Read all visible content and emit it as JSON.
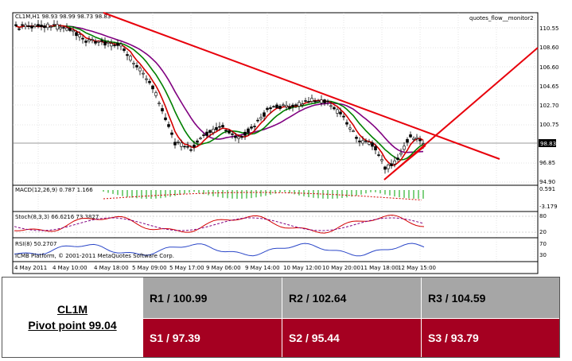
{
  "chart": {
    "header": "CL1M,H1  98.93 98.99 98.73 98.83",
    "indicator_label": "quotes_flow__monitor2",
    "copyright": "ICMB Platform, © 2001-2011 MetaQuotes Software Corp.",
    "price_ticks": [
      "110.55",
      "108.60",
      "106.60",
      "104.65",
      "102.70",
      "100.75",
      "96.85",
      "94.90"
    ],
    "current_price": "98.83",
    "x_ticks": [
      "4 May 2011",
      "4 May 10:00",
      "4 May 18:00",
      "5 May 09:00",
      "5 May 17:00",
      "9 May 06:00",
      "9 May 14:00",
      "10 May 12:00",
      "10 May 20:00",
      "11 May 18:00",
      "12 May 15:00"
    ],
    "macd_label": "MACD(12,26,9) 0.787 1.166",
    "macd_ticks": [
      "0.591",
      "-3.179"
    ],
    "stoch_label": "Stoch(8,3,3) 66.6216 73.3827",
    "stoch_ticks": [
      "80",
      "20"
    ],
    "rsi_label": "RSI(8) 50.2707",
    "rsi_ticks": [
      "70",
      "30"
    ],
    "colors": {
      "trendline": "#e8000b",
      "bull_candle": "#000000",
      "ma_fast": "#d40000",
      "ma_mid": "#008000",
      "ma_slow": "#800080",
      "macd_hist": "#00a000",
      "rsi": "#2a46c8"
    }
  },
  "pivot": {
    "symbol": "CL1M",
    "pivot_label": "Pivot point 99.04",
    "resistance": [
      "R1 / 100.99",
      "R2 / 102.64",
      "R3 / 104.59"
    ],
    "support": [
      "S1 / 97.39",
      "S2 /  95.44",
      "S3 /  93.79"
    ]
  }
}
